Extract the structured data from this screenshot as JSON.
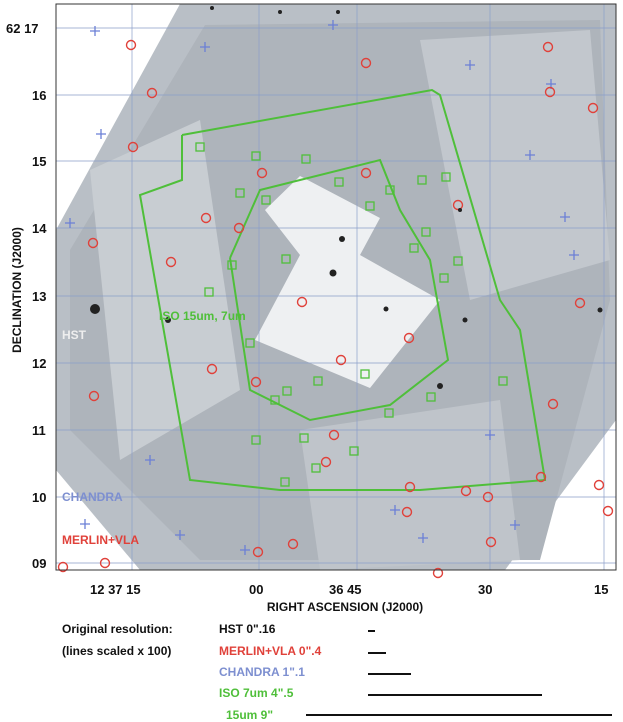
{
  "axes": {
    "dec_ticks": [
      "62 17",
      "16",
      "15",
      "14",
      "13",
      "12",
      "11",
      "10",
      "09"
    ],
    "ra_ticks": [
      "12 37 15",
      "00",
      "36 45",
      "30",
      "15"
    ],
    "ylabel": "DECLINATION (J2000)",
    "xlabel": "RIGHT ASCENSION (J2000)"
  },
  "plot_labels": {
    "hst": "HST",
    "iso": "ISO 15um, 7um",
    "chandra": "CHANDRA",
    "merlin": "MERLIN+VLA"
  },
  "legend": {
    "title1": "Original resolution:",
    "title2": "(lines scaled x 100)",
    "rows": [
      {
        "label": "HST 0\".16",
        "color": "#111111"
      },
      {
        "label": "MERLIN+VLA 0\".4",
        "color": "#e0413a"
      },
      {
        "label": "CHANDRA 1\".1",
        "color": "#7d8fd0"
      },
      {
        "label": "ISO 7um 4\".5",
        "color": "#4fbf3a"
      },
      {
        "label": "15um 9\"",
        "color": "#4fbf3a"
      }
    ]
  },
  "colors": {
    "merlin": "#e0413a",
    "chandra": "#6b7fd6",
    "iso": "#4fbf3a",
    "grid": "#8a9ec9"
  }
}
